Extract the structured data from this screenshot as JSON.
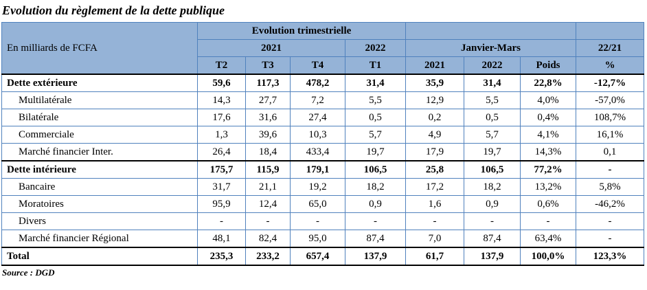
{
  "title": "Evolution du règlement de la dette publique",
  "source": "Source : DGD",
  "colors": {
    "header_fill": "#95B3D7",
    "grid_border": "#4F81BD",
    "section_border": "#000000",
    "text": "#000000"
  },
  "table": {
    "unit_label": "En milliards de FCFA",
    "header": {
      "group_trimestrielle": "Evolution trimestrielle",
      "sub_year_2021": "2021",
      "sub_year_2022": "2022",
      "group_janvier_mars": "Janvier-Mars",
      "group_ratio": "22/21",
      "cols": [
        "T2",
        "T3",
        "T4",
        "2021",
        "2022",
        "Poids",
        "%"
      ],
      "col_t1": "T1"
    },
    "rows": [
      {
        "label": "Dette extérieure",
        "style": "section",
        "values": [
          "59,6",
          "117,3",
          "478,2",
          "31,4",
          "35,9",
          "31,4",
          "22,8%",
          "-12,7%"
        ]
      },
      {
        "label": "Multilatérale",
        "style": "sub",
        "values": [
          "14,3",
          "27,7",
          "7,2",
          "5,5",
          "12,9",
          "5,5",
          "4,0%",
          "-57,0%"
        ]
      },
      {
        "label": "Bilatérale",
        "style": "sub",
        "values": [
          "17,6",
          "31,6",
          "27,4",
          "0,5",
          "0,2",
          "0,5",
          "0,4%",
          "108,7%"
        ]
      },
      {
        "label": "Commerciale",
        "style": "sub",
        "values": [
          "1,3",
          "39,6",
          "10,3",
          "5,7",
          "4,9",
          "5,7",
          "4,1%",
          "16,1%"
        ]
      },
      {
        "label": "Marché financier Inter.",
        "style": "sub",
        "values": [
          "26,4",
          "18,4",
          "433,4",
          "19,7",
          "17,9",
          "19,7",
          "14,3%",
          "0,1"
        ]
      },
      {
        "label": "Dette intérieure",
        "style": "section",
        "values": [
          "175,7",
          "115,9",
          "179,1",
          "106,5",
          "25,8",
          "106,5",
          "77,2%",
          "-"
        ]
      },
      {
        "label": "Bancaire",
        "style": "sub",
        "values": [
          "31,7",
          "21,1",
          "19,2",
          "18,2",
          "17,2",
          "18,2",
          "13,2%",
          "5,8%"
        ]
      },
      {
        "label": "Moratoires",
        "style": "sub",
        "values": [
          "95,9",
          "12,4",
          "65,0",
          "0,9",
          "1,6",
          "0,9",
          "0,6%",
          "-46,2%"
        ]
      },
      {
        "label": "Divers",
        "style": "sub",
        "values": [
          "-",
          "-",
          "-",
          "-",
          "-",
          "-",
          "-",
          "-"
        ]
      },
      {
        "label": "Marché financier Régional",
        "style": "sub",
        "values": [
          "48,1",
          "82,4",
          "95,0",
          "87,4",
          "7,0",
          "87,4",
          "63,4%",
          "-"
        ]
      },
      {
        "label": "Total",
        "style": "total",
        "values": [
          "235,3",
          "233,2",
          "657,4",
          "137,9",
          "61,7",
          "137,9",
          "100,0%",
          "123,3%"
        ]
      }
    ]
  }
}
